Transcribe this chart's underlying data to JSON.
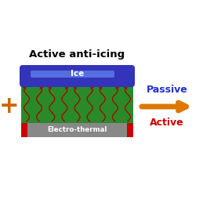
{
  "title": "Active anti-icing",
  "title_color": "#000000",
  "title_fontsize": 9.5,
  "title_fontweight": "bold",
  "bg_color": "#ffffff",
  "plus_symbol": "+",
  "plus_color": "#cc6600",
  "plus_fontsize": 22,
  "ice_label": "Ice",
  "ice_label_color": "#ffffff",
  "ice_color": "#3333bb",
  "ice_highlight_color": "#6688ee",
  "green_rect_color": "#2a8a2a",
  "electrothermal_label": "Electro-thermal",
  "electrothermal_label_color": "#ffffff",
  "electrothermal_bar_color": "#888888",
  "electrothermal_square_color": "#cc0000",
  "arrow_fill_color": "#cc2200",
  "orange_arrow_color": "#dd7700",
  "passive_text": "Passive",
  "passive_color": "#2233cc",
  "passive_fontsize": 9,
  "passive_fontweight": "bold",
  "active_text": "Active",
  "active_color": "#cc0000",
  "active_fontsize": 9,
  "active_fontweight": "bold",
  "heat_arrow_color": "#991100"
}
